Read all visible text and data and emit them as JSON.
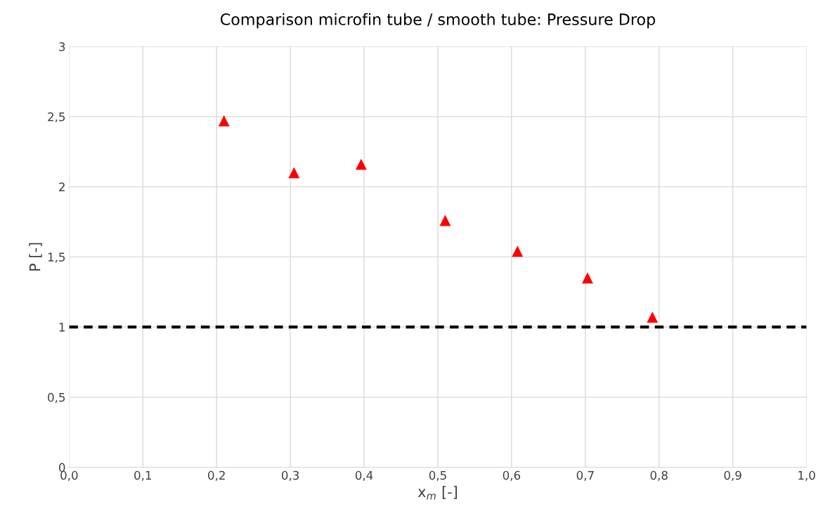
{
  "chart_data": {
    "type": "scatter",
    "title": "Comparison microfin tube / smooth tube: Pressure Drop",
    "xlabel": "x$_{m}$ [-]",
    "ylabel": "P [-]",
    "series": [
      {
        "color": "#ff0000",
        "x": [
          0.21,
          0.305,
          0.396,
          0.51,
          0.608,
          0.703,
          0.791
        ],
        "values": [
          2.47,
          2.1,
          2.16,
          1.76,
          1.54,
          1.35,
          1.07
        ]
      }
    ],
    "marker": "triangle",
    "grid": true,
    "xlim": [
      0,
      1
    ],
    "ylim": [
      0,
      3
    ],
    "xticks": [
      {
        "value": 0,
        "label": "0,0"
      },
      {
        "value": 0.1,
        "label": "0,1"
      },
      {
        "value": 0.2,
        "label": "0,2"
      },
      {
        "value": 0.3,
        "label": "0,3"
      },
      {
        "value": 0.4,
        "label": "0,4"
      },
      {
        "value": 0.5,
        "label": "0,5"
      },
      {
        "value": 0.6,
        "label": "0,6"
      },
      {
        "value": 0.7,
        "label": "0,7"
      },
      {
        "value": 0.8,
        "label": "0,8"
      },
      {
        "value": 0.9,
        "label": "0,9"
      },
      {
        "value": 1,
        "label": "1,0"
      }
    ],
    "yticks": [
      0,
      {
        "value": 0.5,
        "label": "0,5"
      },
      1,
      {
        "value": 1.5,
        "label": "1,5"
      },
      2,
      {
        "value": 2.5,
        "label": "2,5"
      },
      3
    ],
    "ref_lines": [
      {
        "axis": "y",
        "value": 1,
        "color": "#000000",
        "line_style": "dashed"
      }
    ]
  }
}
